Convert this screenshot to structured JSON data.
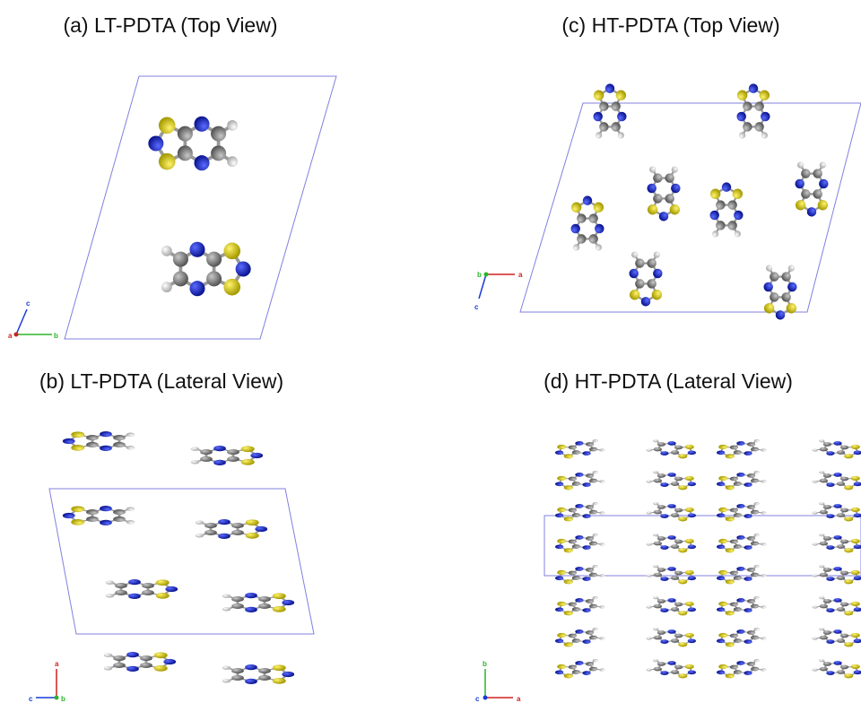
{
  "panels": [
    {
      "title": "(a) LT-PDTA (Top View)",
      "axes": {
        "up": "c",
        "origin": "a",
        "right": "b"
      }
    },
    {
      "title": "(b) LT-PDTA (Lateral View)",
      "axes": {
        "up": "a",
        "left": "c",
        "origin": "b"
      }
    },
    {
      "title": "(c) HT-PDTA (Top View)",
      "axes": {
        "origin": "b",
        "right": "a",
        "down": "c"
      }
    },
    {
      "title": "(d) HT-PDTA (Lateral View)",
      "axes": {
        "up": "b",
        "right": "a",
        "origin": "c"
      }
    }
  ]
}
